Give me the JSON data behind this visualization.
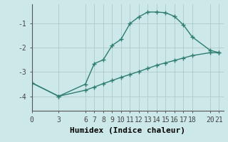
{
  "xlabel": "Humidex (Indice chaleur)",
  "bg_color": "#cce8e8",
  "line_color": "#2e7d6e",
  "grid_color": "#b0c8c8",
  "xticks": [
    0,
    3,
    6,
    7,
    8,
    9,
    10,
    11,
    12,
    13,
    14,
    15,
    16,
    17,
    18,
    20,
    21
  ],
  "yticks": [
    -4,
    -3,
    -2,
    -1
  ],
  "ylim": [
    -4.6,
    -0.2
  ],
  "xlim": [
    0,
    21.5
  ],
  "upper_x": [
    0,
    3,
    6,
    7,
    8,
    9,
    10,
    11,
    12,
    13,
    14,
    15,
    16,
    17,
    18,
    20,
    21
  ],
  "upper_y": [
    -3.45,
    -4.0,
    -3.5,
    -2.65,
    -2.5,
    -1.9,
    -1.65,
    -1.0,
    -0.72,
    -0.52,
    -0.52,
    -0.55,
    -0.7,
    -1.05,
    -1.55,
    -2.1,
    -2.2
  ],
  "lower_x": [
    0,
    3,
    6,
    7,
    8,
    9,
    10,
    11,
    12,
    13,
    14,
    15,
    16,
    17,
    18,
    20,
    21
  ],
  "lower_y": [
    -3.45,
    -4.0,
    -3.75,
    -3.62,
    -3.48,
    -3.35,
    -3.22,
    -3.1,
    -2.98,
    -2.85,
    -2.72,
    -2.62,
    -2.52,
    -2.42,
    -2.32,
    -2.2,
    -2.2
  ],
  "marker_size": 4,
  "line_width": 1.0,
  "tick_fontsize": 7,
  "label_fontsize": 8
}
